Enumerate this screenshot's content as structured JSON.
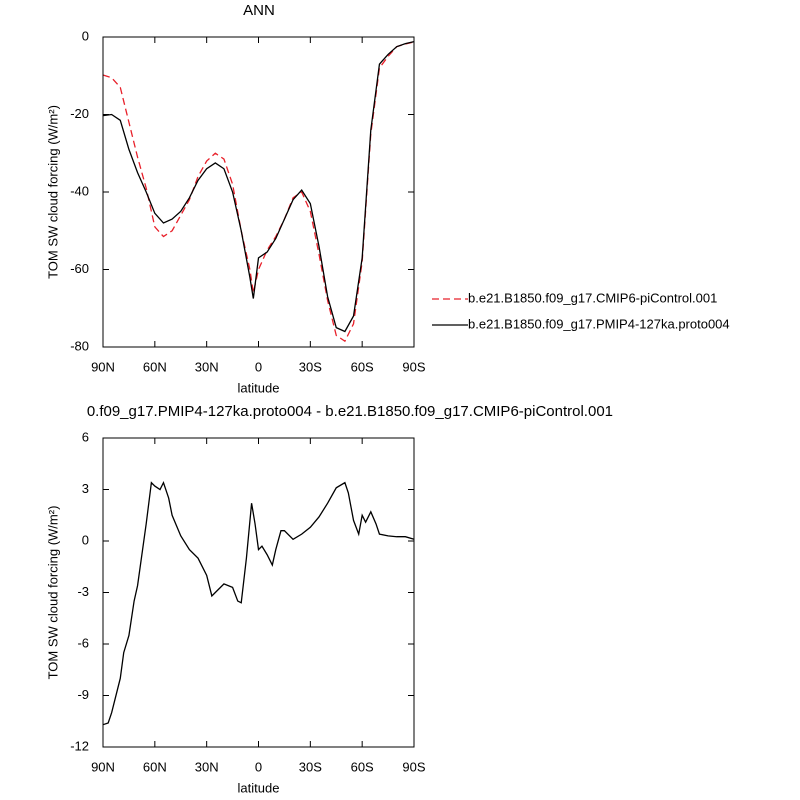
{
  "chart_data": [
    {
      "type": "line",
      "title": "ANN",
      "xlabel": "latitude",
      "ylabel": "TOM SW cloud forcing (W/m²)",
      "x": [
        90,
        85,
        80,
        75,
        70,
        65,
        60,
        55,
        50,
        45,
        40,
        35,
        30,
        25,
        20,
        15,
        10,
        5,
        3,
        0,
        -5,
        -10,
        -15,
        -20,
        -25,
        -30,
        -35,
        -40,
        -45,
        -50,
        -55,
        -60,
        -65,
        -70,
        -75,
        -80,
        -85,
        -90
      ],
      "series": [
        {
          "name": "b.e21.B1850.f09_g17.CMIP6-piControl.001",
          "color": "#e8202a",
          "line_style": "dashed",
          "values": [
            -9.8,
            -10.5,
            -13,
            -22,
            -31,
            -39,
            -49,
            -51.5,
            -50,
            -46,
            -42,
            -36,
            -32,
            -30,
            -31.5,
            -38,
            -50,
            -60,
            -66,
            -60,
            -55,
            -51.5,
            -47,
            -41.5,
            -40,
            -45,
            -56,
            -68,
            -77,
            -78.5,
            -74,
            -58,
            -25,
            -8,
            -5,
            -2.5,
            -1.8,
            -1.3
          ]
        },
        {
          "name": "b.e21.B1850.f09_g17.PMIP4-127ka.proto004",
          "color": "#000000",
          "line_style": "solid",
          "values": [
            -20.3,
            -20,
            -21.5,
            -29,
            -35,
            -40,
            -45.5,
            -48,
            -47,
            -45,
            -41.5,
            -37,
            -34,
            -32.5,
            -34,
            -40,
            -50,
            -62,
            -67.5,
            -57,
            -55.5,
            -52,
            -47,
            -42,
            -39.5,
            -43,
            -54,
            -67,
            -75,
            -76,
            -72,
            -57,
            -24,
            -7,
            -4.5,
            -2.5,
            -1.7,
            -1.2
          ]
        }
      ],
      "xlim": [
        90,
        -90
      ],
      "xticks": [
        {
          "value": 90,
          "label": "90N"
        },
        {
          "value": 60,
          "label": "60N"
        },
        {
          "value": 30,
          "label": "30N"
        },
        0,
        {
          "value": -30,
          "label": "30S"
        },
        {
          "value": -60,
          "label": "60S"
        },
        {
          "value": -90,
          "label": "90S"
        }
      ],
      "ylim": [
        -80,
        0
      ],
      "yticks": [
        0,
        -20,
        -40,
        -60,
        -80
      ],
      "legend": "right"
    },
    {
      "type": "line",
      "title": "0.f09_g17.PMIP4-127ka.proto004 - b.e21.B1850.f09_g17.CMIP6-piControl.001",
      "xlabel": "latitude",
      "ylabel": "TOM SW cloud forcing (W/m²)",
      "x": [
        90,
        87,
        85,
        80,
        78,
        75,
        72,
        70,
        65,
        62,
        60,
        57,
        55,
        52,
        50,
        45,
        40,
        35,
        30,
        27,
        25,
        20,
        15,
        12,
        10,
        7,
        4,
        2,
        0,
        -2,
        -5,
        -8,
        -10,
        -13,
        -15,
        -20,
        -25,
        -30,
        -35,
        -40,
        -45,
        -50,
        -52,
        -55,
        -58,
        -60,
        -62,
        -65,
        -68,
        -70,
        -75,
        -80,
        -85,
        -90
      ],
      "series": [
        {
          "color": "#000000",
          "line_style": "solid",
          "values": [
            -10.7,
            -10.6,
            -10,
            -8,
            -6.5,
            -5.5,
            -3.5,
            -2.6,
            1,
            3.4,
            3.2,
            3,
            3.4,
            2.5,
            1.5,
            0.3,
            -0.5,
            -1,
            -2,
            -3.2,
            -3,
            -2.5,
            -2.7,
            -3.5,
            -3.6,
            -1,
            2.2,
            1,
            -0.5,
            -0.3,
            -0.8,
            -1.4,
            -0.5,
            0.6,
            0.6,
            0.1,
            0.4,
            0.8,
            1.4,
            2.2,
            3.1,
            3.4,
            2.8,
            1.2,
            0.4,
            1.5,
            1.1,
            1.7,
            1,
            0.4,
            0.3,
            0.25,
            0.25,
            0.1
          ]
        }
      ],
      "xlim": [
        90,
        -90
      ],
      "xticks": [
        {
          "value": 90,
          "label": "90N"
        },
        {
          "value": 60,
          "label": "60N"
        },
        {
          "value": 30,
          "label": "30N"
        },
        0,
        {
          "value": -30,
          "label": "30S"
        },
        {
          "value": -60,
          "label": "60S"
        },
        {
          "value": -90,
          "label": "90S"
        }
      ],
      "ylim": [
        -12,
        6
      ],
      "yticks": [
        6,
        3,
        0,
        -3,
        -6,
        -9,
        -12
      ]
    }
  ]
}
